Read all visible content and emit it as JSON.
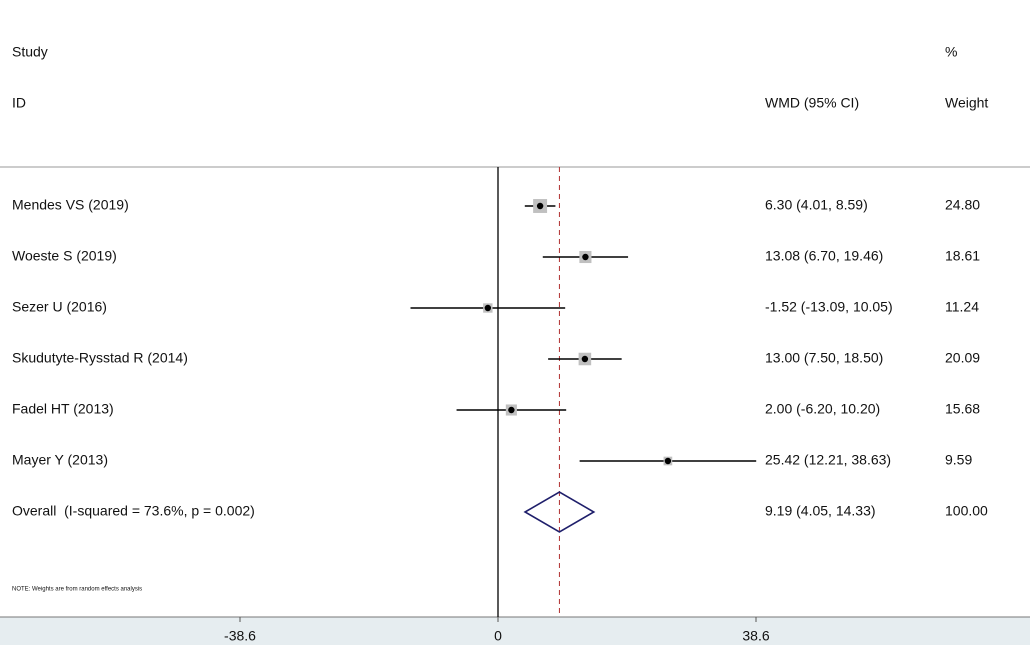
{
  "chart_data": {
    "type": "forest",
    "headers": {
      "study": "Study",
      "id": "ID",
      "effect": "WMD (95% CI)",
      "percent": "%",
      "weight": "Weight"
    },
    "studies": [
      {
        "label": "Mendes VS (2019)",
        "estimate": 6.3,
        "lower": 4.01,
        "upper": 8.59,
        "ci_label": "6.30 (4.01, 8.59)",
        "weight": 24.8,
        "weight_label": "24.80"
      },
      {
        "label": "Woeste S (2019)",
        "estimate": 13.08,
        "lower": 6.7,
        "upper": 19.46,
        "ci_label": "13.08 (6.70, 19.46)",
        "weight": 18.61,
        "weight_label": "18.61"
      },
      {
        "label": "Sezer U (2016)",
        "estimate": -1.52,
        "lower": -13.09,
        "upper": 10.05,
        "ci_label": "-1.52 (-13.09, 10.05)",
        "weight": 11.24,
        "weight_label": "11.24"
      },
      {
        "label": "Skudutyte-Rysstad R (2014)",
        "estimate": 13.0,
        "lower": 7.5,
        "upper": 18.5,
        "ci_label": "13.00 (7.50, 18.50)",
        "weight": 20.09,
        "weight_label": "20.09"
      },
      {
        "label": "Fadel HT (2013)",
        "estimate": 2.0,
        "lower": -6.2,
        "upper": 10.2,
        "ci_label": "2.00 (-6.20, 10.20)",
        "weight": 15.68,
        "weight_label": "15.68"
      },
      {
        "label": "Mayer Y (2013)",
        "estimate": 25.42,
        "lower": 12.21,
        "upper": 38.63,
        "ci_label": "25.42 (12.21, 38.63)",
        "weight": 9.59,
        "weight_label": "9.59"
      }
    ],
    "overall": {
      "label": "Overall  (I-squared = 73.6%, p = 0.002)",
      "estimate": 9.19,
      "lower": 4.05,
      "upper": 14.33,
      "ci_label": "9.19 (4.05, 14.33)",
      "weight_label": "100.00"
    },
    "note": "NOTE: Weights are from random effects analysis",
    "xlim": [
      -38.6,
      38.6
    ],
    "xticks": [
      -38.6,
      0,
      38.6
    ],
    "colors": {
      "square": "#c0c0c0",
      "line": "#000000",
      "diamond": "#1f1f6b",
      "overall_line": "#b03030"
    }
  }
}
